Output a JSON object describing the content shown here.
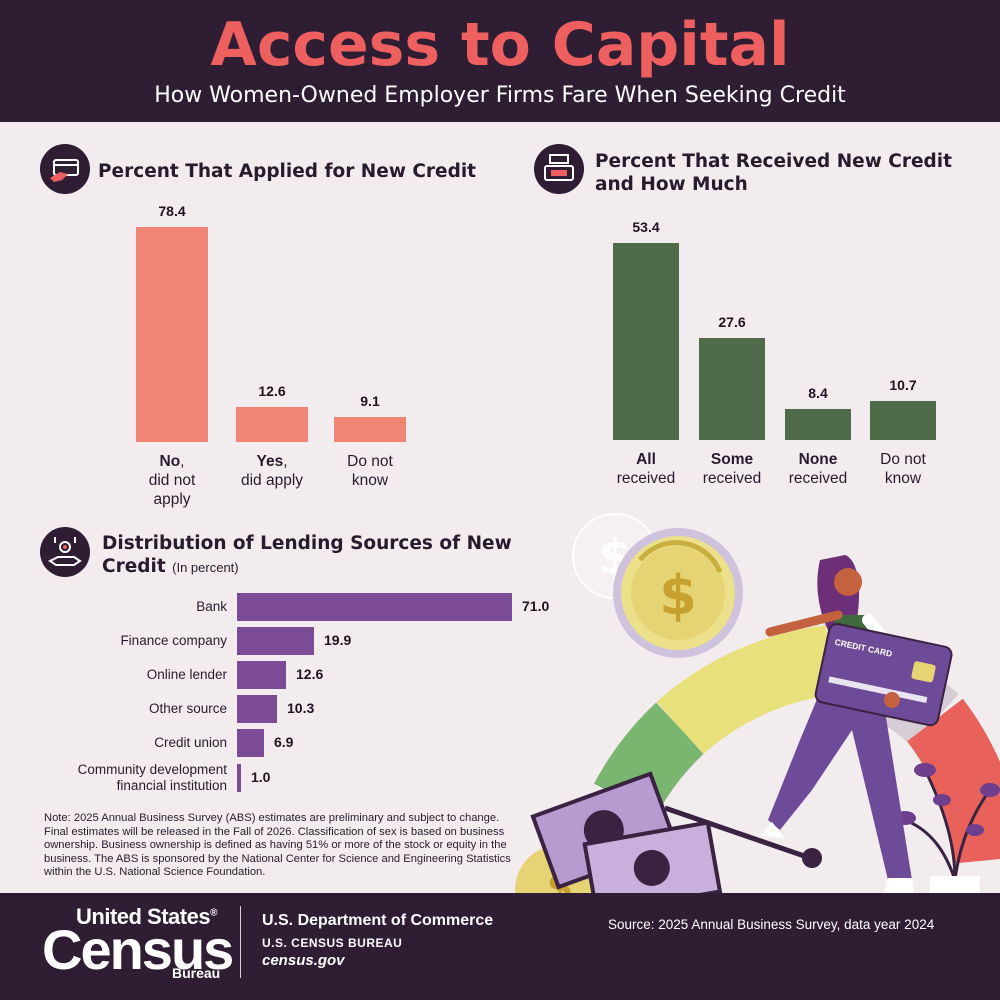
{
  "header": {
    "title": "Access to Capital",
    "subtitle": "How Women-Owned Employer Firms Fare When Seeking Credit"
  },
  "colors": {
    "header_bg": "#2f1d33",
    "title": "#ee5f5f",
    "applied_bar": "#f08575",
    "received_bar": "#4f6b4a",
    "lending_bar": "#7b4b96",
    "background": "#f2ecef"
  },
  "sections": {
    "applied": {
      "title": "Percent That Applied for New Credit",
      "icon": "credit-card-hand-icon"
    },
    "received": {
      "title_line1": "Percent That Received New Credit",
      "title_line2": "and How Much",
      "icon": "cash-register-icon"
    },
    "lending": {
      "title_line1": "Distribution of Lending Sources of New",
      "title_line2": "Credit",
      "unit": "(In percent)",
      "icon": "hand-coins-icon"
    }
  },
  "chart_data": [
    {
      "type": "bar",
      "title": "Percent That Applied for New Credit",
      "categories": [
        {
          "bold": "No",
          "rest": ",",
          "line2": "did not",
          "line3": "apply"
        },
        {
          "bold": "Yes",
          "rest": ",",
          "line2": "did apply",
          "line3": ""
        },
        {
          "bold": "",
          "rest": "Do not",
          "line2": "know",
          "line3": ""
        }
      ],
      "value_labels": [
        "78.4",
        "12.6",
        "9.1"
      ],
      "values": [
        78.4,
        12.6,
        9.1
      ],
      "ylim": [
        0,
        78.4
      ]
    },
    {
      "type": "bar",
      "title": "Percent That Received New Credit and How Much",
      "categories": [
        {
          "bold": "All",
          "line2": "received"
        },
        {
          "bold": "Some",
          "line2": "received"
        },
        {
          "bold": "None",
          "line2": "received"
        },
        {
          "plain": "Do not",
          "line2": "know"
        }
      ],
      "value_labels": [
        "53.4",
        "27.6",
        "8.4",
        "10.7"
      ],
      "values": [
        53.4,
        27.6,
        8.4,
        10.7
      ],
      "ylim": [
        0,
        53.4
      ]
    },
    {
      "type": "bar",
      "orientation": "horizontal",
      "title": "Distribution of Lending Sources of New Credit",
      "unit": "(In percent)",
      "categories": [
        {
          "line1": "Bank"
        },
        {
          "line1": "Finance company"
        },
        {
          "line1": "Online lender"
        },
        {
          "line1": "Other source"
        },
        {
          "line1": "Credit union"
        },
        {
          "line1": "Community development",
          "line2": "financial institution"
        }
      ],
      "value_labels": [
        "71.0",
        "19.9",
        "12.6",
        "10.3",
        "6.9",
        "1.0"
      ],
      "values": [
        71.0,
        19.9,
        12.6,
        10.3,
        6.9,
        1.0
      ],
      "xlim": [
        0,
        71.0
      ]
    }
  ],
  "note": "Note: 2025 Annual Business Survey (ABS) estimates are preliminary and subject to change. Final estimates will be released in the Fall of 2026. Classification of sex is based on business ownership. Business ownership is defined as having 51% or more of the stock or equity in the business. The ABS is sponsored by the National Center for Science and Engineering Statistics within the U.S. National Science Foundation.",
  "illustration": {
    "card_text": "CREDIT CARD"
  },
  "footer": {
    "logo_line1": "United States",
    "logo_reg": "®",
    "logo_line2": "Census",
    "logo_line3": "Bureau",
    "dept": "U.S. Department of Commerce",
    "bureau": "U.S. CENSUS BUREAU",
    "site": "census.gov",
    "source": "Source: 2025 Annual Business Survey, data year 2024"
  }
}
